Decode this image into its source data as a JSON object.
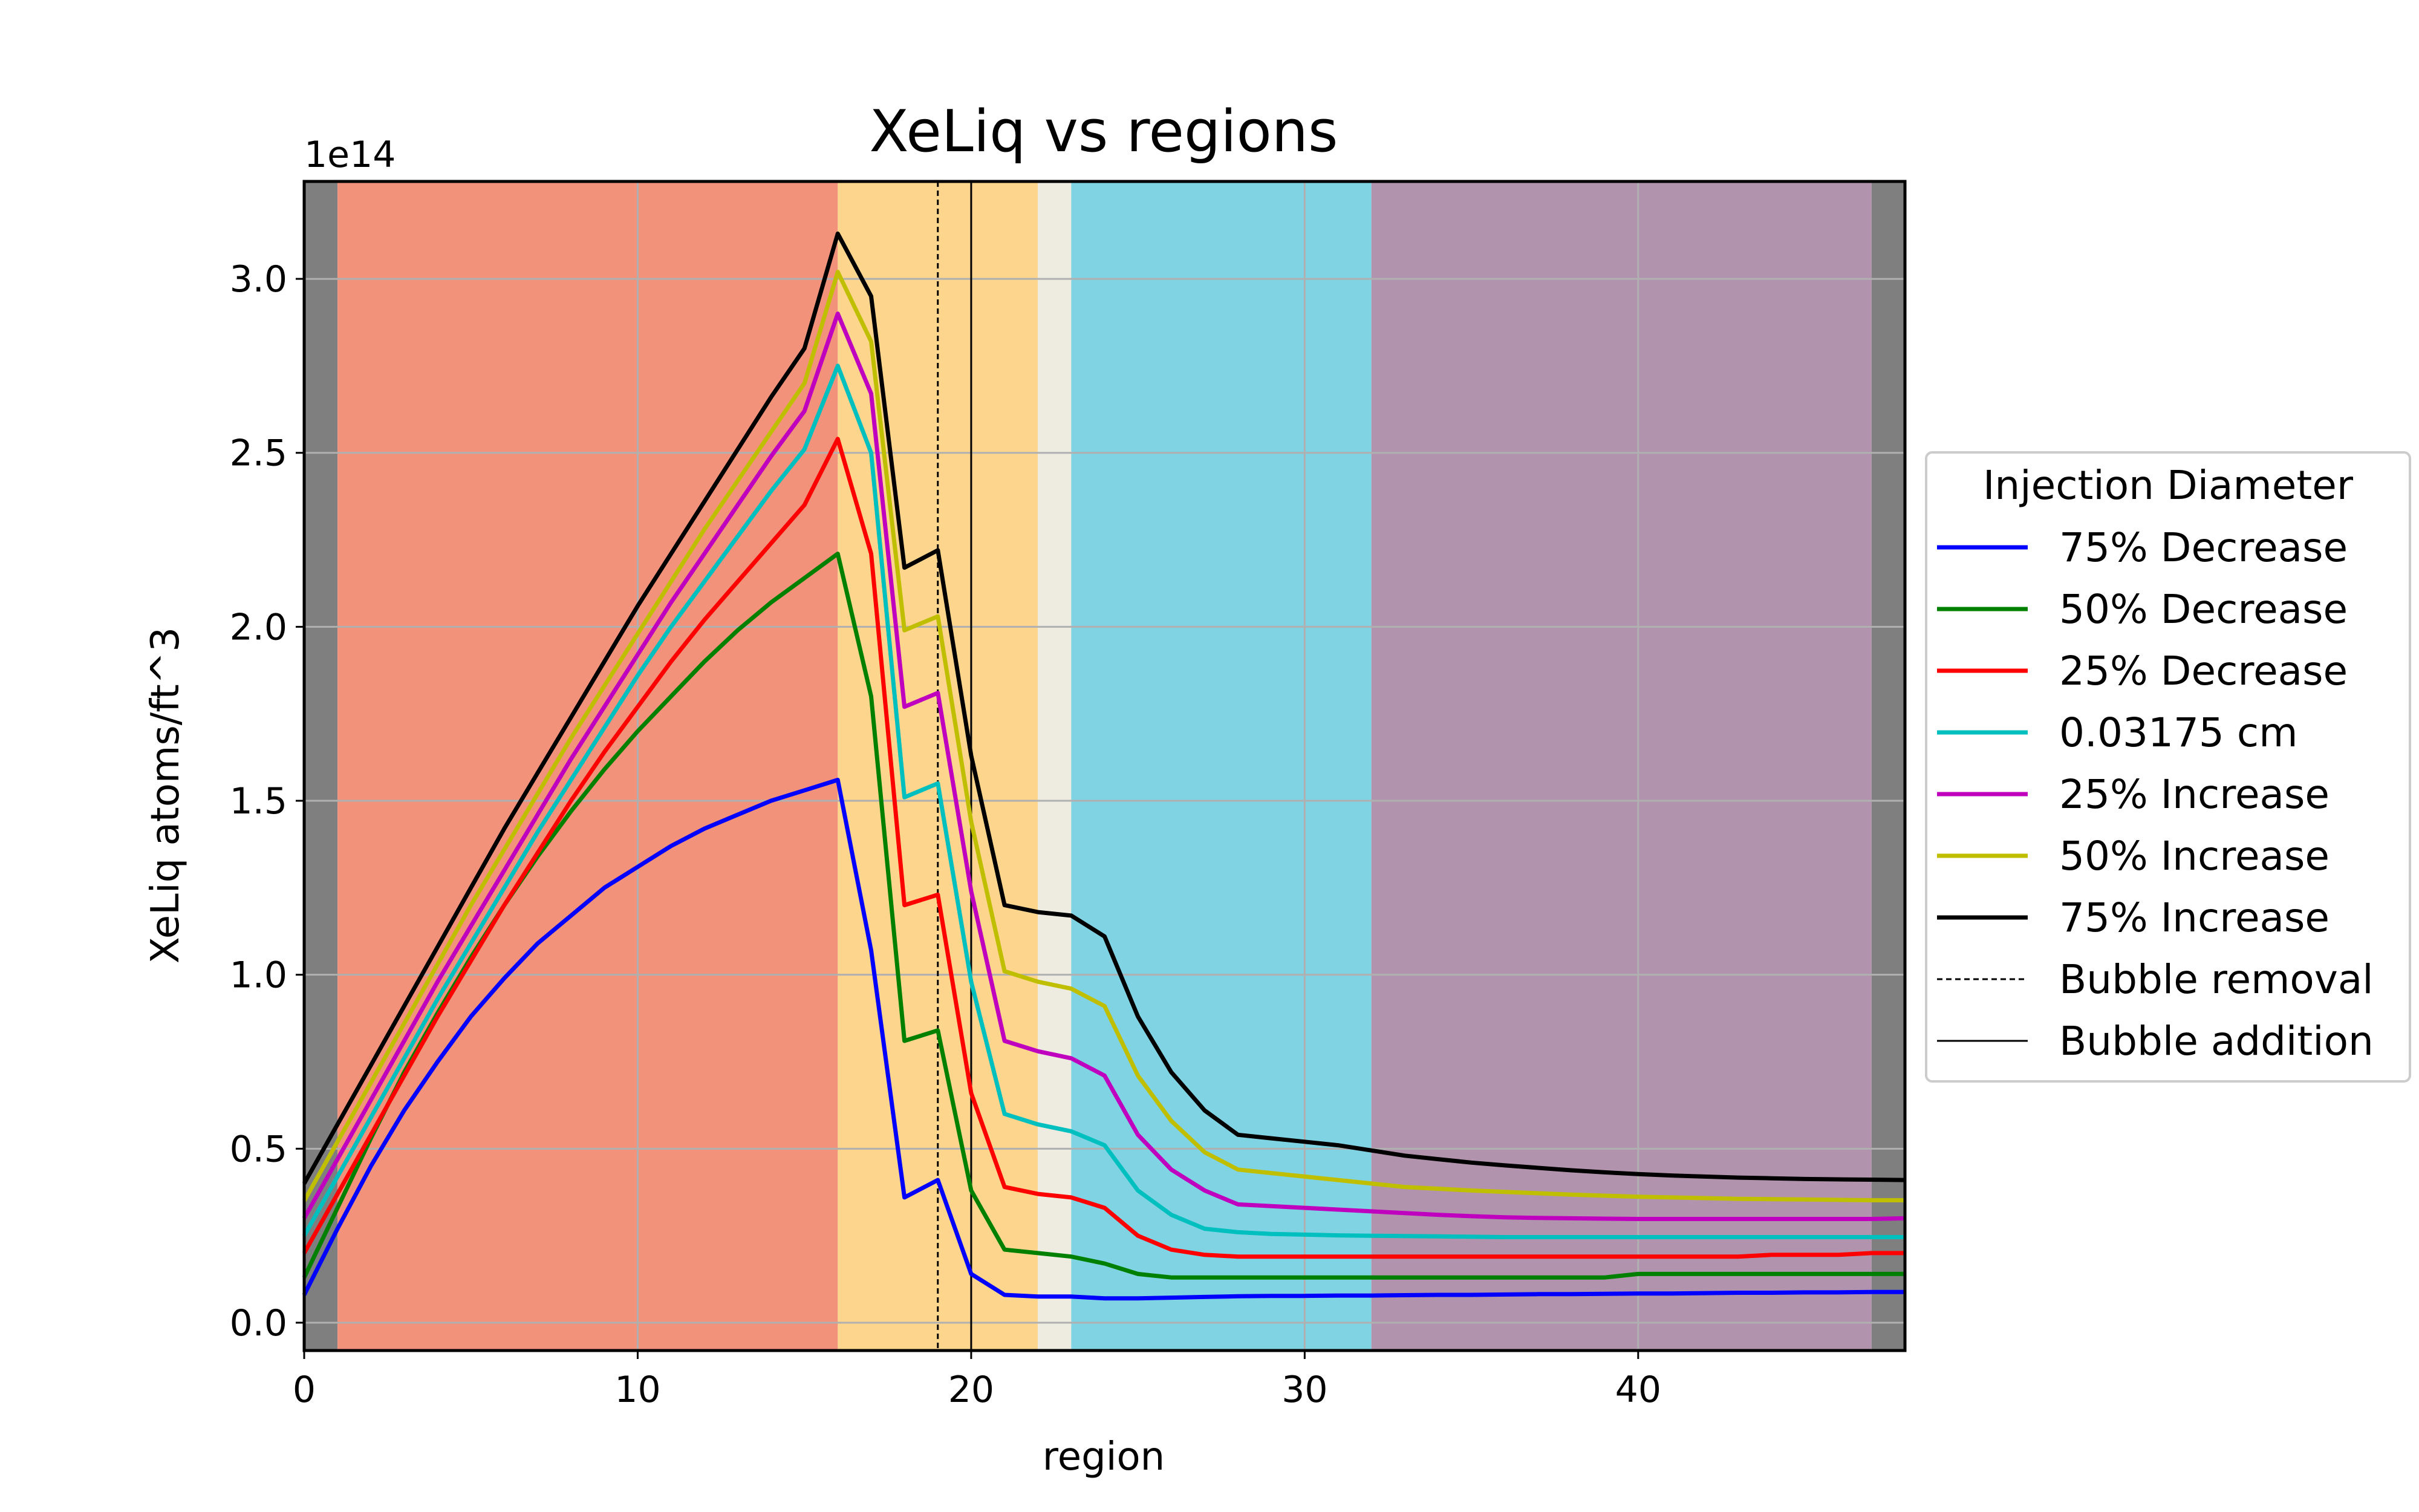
{
  "chart_data": {
    "type": "line",
    "title": "XeLiq vs regions",
    "xlabel": "region",
    "ylabel": "XeLiq atoms/ft^3",
    "offset_label": "1e14",
    "xlim": [
      0,
      48
    ],
    "ylim": [
      -0.08,
      3.28
    ],
    "y_scale": 100000000000000.0,
    "grid": true,
    "xticks": [
      0,
      10,
      20,
      30,
      40
    ],
    "xtick_labels": [
      "0",
      "10",
      "20",
      "30",
      "40"
    ],
    "yticks": [
      0.0,
      0.5,
      1.0,
      1.5,
      2.0,
      2.5,
      3.0
    ],
    "ytick_labels": [
      "0.0",
      "0.5",
      "1.0",
      "1.5",
      "2.0",
      "2.5",
      "3.0"
    ],
    "bands": [
      {
        "from": 0,
        "to": 1,
        "color": "#7f7f7f"
      },
      {
        "from": 1,
        "to": 16,
        "color": "#f2927a"
      },
      {
        "from": 16,
        "to": 22,
        "color": "#fdd58c"
      },
      {
        "from": 22,
        "to": 23,
        "color": "#eeece1"
      },
      {
        "from": 23,
        "to": 32,
        "color": "#80d3e3"
      },
      {
        "from": 32,
        "to": 47,
        "color": "#b293ae"
      },
      {
        "from": 47,
        "to": 48,
        "color": "#7f7f7f"
      }
    ],
    "vlines": [
      {
        "x": 19,
        "style": "dashed",
        "label": "Bubble removal"
      },
      {
        "x": 20,
        "style": "solid",
        "label": "Bubble addition"
      }
    ],
    "x": [
      0,
      1,
      2,
      3,
      4,
      5,
      6,
      7,
      8,
      9,
      10,
      11,
      12,
      13,
      14,
      15,
      16,
      17,
      18,
      19,
      20,
      21,
      22,
      23,
      24,
      25,
      26,
      27,
      28,
      29,
      30,
      31,
      32,
      33,
      34,
      35,
      36,
      37,
      38,
      39,
      40,
      41,
      42,
      43,
      44,
      45,
      46,
      47,
      48
    ],
    "series": [
      {
        "name": "75% Decrease",
        "color": "#0000ff",
        "values": [
          0.08,
          0.27,
          0.45,
          0.61,
          0.75,
          0.88,
          0.99,
          1.09,
          1.17,
          1.25,
          1.31,
          1.37,
          1.42,
          1.46,
          1.5,
          1.53,
          1.56,
          1.07,
          0.36,
          0.41,
          0.14,
          0.08,
          0.075,
          0.075,
          0.07,
          0.07,
          0.072,
          0.074,
          0.076,
          0.077,
          0.077,
          0.078,
          0.078,
          0.079,
          0.08,
          0.08,
          0.081,
          0.082,
          0.082,
          0.083,
          0.084,
          0.084,
          0.085,
          0.086,
          0.086,
          0.087,
          0.087,
          0.088,
          0.088
        ]
      },
      {
        "name": "50% Decrease",
        "color": "#008000",
        "values": [
          0.13,
          0.33,
          0.53,
          0.72,
          0.89,
          1.05,
          1.2,
          1.34,
          1.47,
          1.59,
          1.7,
          1.8,
          1.9,
          1.99,
          2.07,
          2.14,
          2.21,
          1.8,
          0.81,
          0.84,
          0.38,
          0.21,
          0.2,
          0.19,
          0.17,
          0.14,
          0.13,
          0.13,
          0.13,
          0.13,
          0.13,
          0.13,
          0.13,
          0.13,
          0.13,
          0.13,
          0.13,
          0.13,
          0.13,
          0.13,
          0.14,
          0.14,
          0.14,
          0.14,
          0.14,
          0.14,
          0.14,
          0.14,
          0.14
        ]
      },
      {
        "name": "25% Decrease",
        "color": "#ff0000",
        "values": [
          0.2,
          0.37,
          0.54,
          0.71,
          0.88,
          1.04,
          1.2,
          1.35,
          1.5,
          1.64,
          1.77,
          1.9,
          2.02,
          2.13,
          2.24,
          2.35,
          2.54,
          2.21,
          1.2,
          1.23,
          0.66,
          0.39,
          0.37,
          0.36,
          0.33,
          0.25,
          0.21,
          0.195,
          0.19,
          0.19,
          0.19,
          0.19,
          0.19,
          0.19,
          0.19,
          0.19,
          0.19,
          0.19,
          0.19,
          0.19,
          0.19,
          0.19,
          0.19,
          0.19,
          0.195,
          0.195,
          0.195,
          0.2,
          0.2
        ]
      },
      {
        "name": "0.03175 cm",
        "color": "#00bfbf",
        "values": [
          0.25,
          0.42,
          0.59,
          0.76,
          0.93,
          1.09,
          1.25,
          1.41,
          1.56,
          1.71,
          1.86,
          2.0,
          2.13,
          2.26,
          2.39,
          2.51,
          2.75,
          2.5,
          1.51,
          1.55,
          0.98,
          0.6,
          0.57,
          0.55,
          0.51,
          0.38,
          0.31,
          0.27,
          0.26,
          0.255,
          0.253,
          0.251,
          0.25,
          0.249,
          0.248,
          0.247,
          0.246,
          0.246,
          0.246,
          0.246,
          0.246,
          0.246,
          0.246,
          0.246,
          0.246,
          0.246,
          0.246,
          0.246,
          0.246
        ]
      },
      {
        "name": "25% Increase",
        "color": "#bf00bf",
        "values": [
          0.3,
          0.47,
          0.64,
          0.81,
          0.98,
          1.14,
          1.3,
          1.46,
          1.62,
          1.77,
          1.92,
          2.07,
          2.21,
          2.35,
          2.49,
          2.62,
          2.9,
          2.67,
          1.77,
          1.81,
          1.24,
          0.81,
          0.78,
          0.76,
          0.71,
          0.54,
          0.44,
          0.38,
          0.34,
          0.335,
          0.33,
          0.325,
          0.32,
          0.315,
          0.31,
          0.306,
          0.303,
          0.301,
          0.3,
          0.299,
          0.298,
          0.298,
          0.298,
          0.298,
          0.298,
          0.298,
          0.298,
          0.298,
          0.3
        ]
      },
      {
        "name": "50% Increase",
        "color": "#bfbf00",
        "values": [
          0.35,
          0.52,
          0.69,
          0.86,
          1.03,
          1.2,
          1.36,
          1.52,
          1.68,
          1.83,
          1.98,
          2.13,
          2.28,
          2.42,
          2.56,
          2.7,
          3.02,
          2.82,
          1.99,
          2.03,
          1.44,
          1.01,
          0.98,
          0.96,
          0.91,
          0.71,
          0.58,
          0.49,
          0.44,
          0.43,
          0.42,
          0.41,
          0.4,
          0.39,
          0.385,
          0.38,
          0.376,
          0.372,
          0.368,
          0.365,
          0.362,
          0.36,
          0.358,
          0.356,
          0.355,
          0.354,
          0.353,
          0.352,
          0.352
        ]
      },
      {
        "name": "75% Increase",
        "color": "#000000",
        "values": [
          0.4,
          0.57,
          0.74,
          0.91,
          1.08,
          1.25,
          1.42,
          1.58,
          1.74,
          1.9,
          2.06,
          2.21,
          2.36,
          2.51,
          2.66,
          2.8,
          3.13,
          2.95,
          2.17,
          2.22,
          1.63,
          1.2,
          1.18,
          1.17,
          1.11,
          0.88,
          0.72,
          0.61,
          0.54,
          0.53,
          0.52,
          0.51,
          0.495,
          0.48,
          0.47,
          0.46,
          0.452,
          0.445,
          0.438,
          0.432,
          0.427,
          0.423,
          0.42,
          0.417,
          0.415,
          0.413,
          0.412,
          0.411,
          0.41
        ]
      }
    ],
    "legend": {
      "title": "Injection Diameter",
      "position": "center-right outside",
      "entries": [
        "75% Decrease",
        "50% Decrease",
        "25% Decrease",
        "0.03175 cm",
        "25% Increase",
        "50% Increase",
        "75% Increase",
        "Bubble removal",
        "Bubble addition"
      ]
    }
  }
}
